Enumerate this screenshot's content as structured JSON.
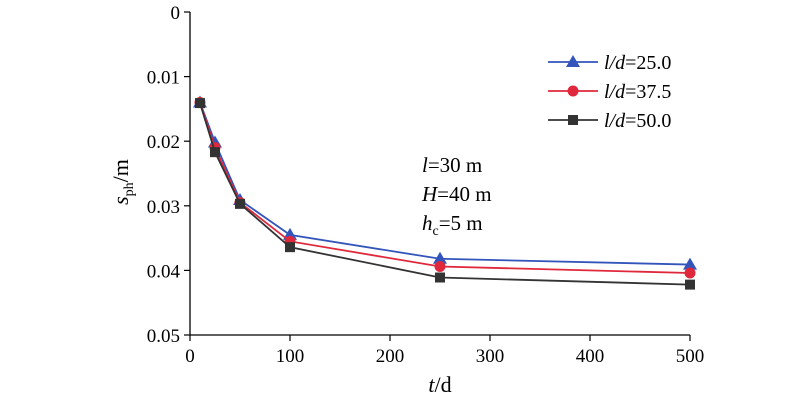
{
  "chart_data": {
    "type": "line",
    "xlabel": {
      "var": "t",
      "unit": "/d"
    },
    "ylabel": {
      "var": "s",
      "sub": "ph",
      "unit": "/m"
    },
    "xlim": [
      0,
      500
    ],
    "ylim": [
      0,
      0.05
    ],
    "y_inverted": true,
    "xticks": [
      0,
      100,
      200,
      300,
      400,
      500
    ],
    "yticks": [
      0,
      0.01,
      0.02,
      0.03,
      0.04,
      0.05
    ],
    "xtick_labels": [
      "0",
      "100",
      "200",
      "300",
      "400",
      "500"
    ],
    "ytick_labels": [
      "0",
      "0.01",
      "0.02",
      "0.03",
      "0.04",
      "0.05"
    ],
    "grid": false,
    "legend_position": "top-right",
    "x": [
      10,
      25,
      50,
      100,
      250,
      500
    ],
    "series": [
      {
        "label_var": "l/d",
        "label_value": "=25.0",
        "color": "#3355bb",
        "marker": "triangle",
        "values": [
          0.014,
          0.0202,
          0.0291,
          0.0345,
          0.0382,
          0.0391
        ]
      },
      {
        "label_var": "l/d",
        "label_value": "=37.5",
        "color": "#e0283c",
        "marker": "circle",
        "values": [
          0.014,
          0.021,
          0.0295,
          0.0355,
          0.0394,
          0.0404
        ]
      },
      {
        "label_var": "l/d",
        "label_value": "=50.0",
        "color": "#333333",
        "marker": "square",
        "values": [
          0.0141,
          0.0217,
          0.0297,
          0.0364,
          0.0411,
          0.0422
        ]
      }
    ],
    "annotations": [
      {
        "var": "l",
        "sub": "",
        "text": "=30 m"
      },
      {
        "var": "H",
        "sub": "",
        "text": "=40 m"
      },
      {
        "var": "h",
        "sub": "c",
        "text": "=5 m"
      }
    ]
  }
}
